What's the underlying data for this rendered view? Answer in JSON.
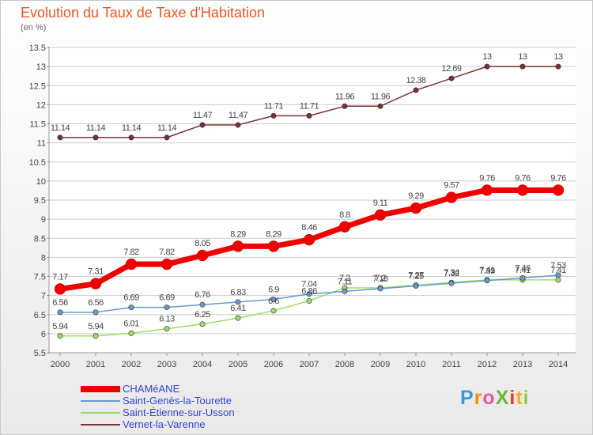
{
  "header": {
    "title": "Evolution du Taux de Taxe d'Habitation",
    "subtitle": "(en %)"
  },
  "colors": {
    "title": "#ee5522",
    "legend_text": "#3344cc",
    "grid": "#cccccc",
    "axis": "#999999"
  },
  "chart_data": {
    "type": "line",
    "categories": [
      "2000",
      "2001",
      "2002",
      "2003",
      "2004",
      "2005",
      "2006",
      "2007",
      "2008",
      "2009",
      "2010",
      "2011",
      "2012",
      "2013",
      "2014"
    ],
    "ylim": [
      5.5,
      13.5
    ],
    "y_ticks": [
      "5.5",
      "6",
      "6.5",
      "7",
      "7.5",
      "8",
      "8.5",
      "9",
      "9.5",
      "10",
      "10.5",
      "11",
      "11.5",
      "12",
      "12.5",
      "13",
      "13.5"
    ],
    "grid": "horizontal",
    "legend_position": "bottom-left",
    "series": [
      {
        "name": "CHAMéANE",
        "color": "#ee0000",
        "values": [
          7.17,
          7.31,
          7.82,
          7.82,
          8.05,
          8.29,
          8.29,
          8.46,
          8.8,
          9.11,
          9.29,
          9.57,
          9.76,
          9.76,
          9.76
        ],
        "labels": [
          "7.17",
          "7.31",
          "7.82",
          "7.82",
          "8.05",
          "8.29",
          "8.29",
          "8.46",
          "8.8",
          "9.11",
          "9.29",
          "9.57",
          "9.76",
          "9.76",
          "9.76"
        ]
      },
      {
        "name": "Saint-Genès-la-Tourette",
        "color": "#6699cc",
        "values": [
          6.56,
          6.56,
          6.69,
          6.69,
          6.76,
          6.83,
          6.9,
          7.04,
          7.11,
          7.18,
          7.25,
          7.32,
          7.39,
          7.46,
          7.53
        ],
        "labels": [
          "6.56",
          "6.56",
          "6.69",
          "6.69",
          "6.76",
          "6.83",
          "6.9",
          "7.04",
          "7.11",
          "7.18",
          "7.25",
          "7.32",
          "7.39",
          "7.46",
          "7.53"
        ]
      },
      {
        "name": "Saint-Étienne-sur-Usson",
        "color": "#99dd66",
        "values": [
          5.94,
          5.94,
          6.01,
          6.13,
          6.25,
          6.41,
          6.6,
          6.86,
          7.2,
          7.2,
          7.27,
          7.34,
          7.41,
          7.41,
          7.41
        ],
        "labels": [
          "5.94",
          "5.94",
          "6.01",
          "6.13",
          "6.25",
          "6.41",
          "6.6",
          "6.86",
          "7.2",
          "7.2",
          "7.27",
          "7.34",
          "7.41",
          "7.41",
          "7.41"
        ]
      },
      {
        "name": "Vernet-la-Varenne",
        "color": "#773333",
        "values": [
          11.14,
          11.14,
          11.14,
          11.14,
          11.47,
          11.47,
          11.71,
          11.71,
          11.96,
          11.96,
          12.38,
          12.69,
          13,
          13,
          13
        ],
        "labels": [
          "11.14",
          "11.14",
          "11.14",
          "11.14",
          "11.47",
          "11.47",
          "11.71",
          "11.71",
          "11.96",
          "11.96",
          "12.38",
          "12.69",
          "13",
          "13",
          "13"
        ]
      }
    ]
  },
  "legend": {
    "items": [
      "CHAMéANE",
      "Saint-Genès-la-Tourette",
      "Saint-Étienne-sur-Usson",
      "Vernet-la-Varenne"
    ]
  },
  "logo": {
    "text": "ProXiti",
    "letter_colors": [
      "#3399dd",
      "#ff8800",
      "#ee5599",
      "#66bb33",
      "#ee3322",
      "#ffaa22",
      "#99cc33"
    ]
  }
}
